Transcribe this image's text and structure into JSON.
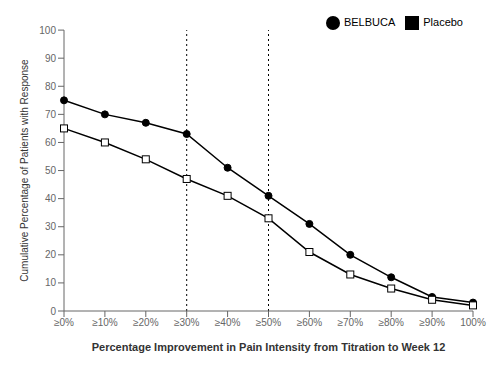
{
  "chart_data": {
    "type": "line",
    "categories": [
      "≥0%",
      "≥10%",
      "≥20%",
      "≥30%",
      "≥40%",
      "≥50%",
      "≥60%",
      "≥70%",
      "≥80%",
      "≥90%",
      "100%"
    ],
    "series": [
      {
        "name": "BELBUCA",
        "color": "#000000",
        "marker": "circle",
        "values": [
          75,
          70,
          67,
          63,
          51,
          41,
          31,
          20,
          12,
          5,
          3
        ]
      },
      {
        "name": "Placebo",
        "color": "#000000",
        "marker": "open_square",
        "values": [
          65,
          60,
          54,
          47,
          41,
          33,
          21,
          13,
          8,
          4,
          2
        ]
      }
    ],
    "xlabel": "Percentage Improvement in Pain Intensity from Titration to Week 12",
    "ylabel": "Cumulative Percentage of Patients with Response",
    "ylim": [
      0,
      100
    ],
    "yticks": [
      0,
      10,
      20,
      30,
      40,
      50,
      60,
      70,
      80,
      90,
      100
    ],
    "vlines": [
      "≥30%",
      "≥50%"
    ],
    "legend": "upper right",
    "grid": false
  }
}
